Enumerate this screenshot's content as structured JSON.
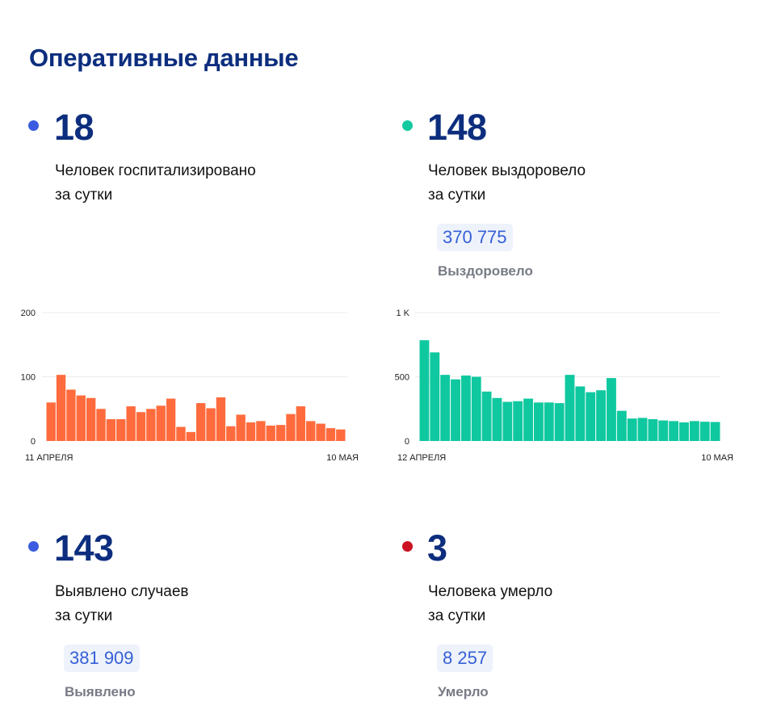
{
  "header": {
    "title": "Оперативные данные"
  },
  "colors": {
    "blue_dot": "#3a5be0",
    "teal_dot": "#12c9a0",
    "red_dot": "#cc1222",
    "hospital_bar": "#ff6b3d",
    "recovered_bar": "#0fc8a0"
  },
  "stats": {
    "hospitalized": {
      "value": "18",
      "line1": "Человек госпитализировано",
      "line2": "за сутки"
    },
    "recovered": {
      "value": "148",
      "line1": "Человек выздоровело",
      "line2": "за сутки",
      "total": "370 775",
      "total_label": "Выздоровело"
    },
    "cases": {
      "value": "143",
      "line1": "Выявлено случаев",
      "line2": "за сутки",
      "total": "381 909",
      "total_label": "Выявлено"
    },
    "deaths": {
      "value": "3",
      "line1": "Человека умерло",
      "line2": "за сутки",
      "total": "8 257",
      "total_label": "Умерло"
    }
  },
  "chart_data": [
    {
      "type": "bar",
      "ylim": [
        0,
        200
      ],
      "yticks": [
        "0",
        "100",
        "200"
      ],
      "ytick_values": [
        0,
        100,
        200
      ],
      "x_start_label": "11 АПРЕЛЯ",
      "x_end_label": "10 МАЯ",
      "values": [
        60,
        103,
        80,
        71,
        67,
        50,
        34,
        34,
        54,
        45,
        50,
        55,
        66,
        22,
        14,
        59,
        51,
        68,
        23,
        41,
        29,
        31,
        24,
        25,
        42,
        54,
        31,
        27,
        20,
        18
      ]
    },
    {
      "type": "bar",
      "ylim": [
        0,
        1000
      ],
      "yticks": [
        "0",
        "500",
        "1 K"
      ],
      "ytick_values": [
        0,
        500,
        1000
      ],
      "x_start_label": "12 АПРЕЛЯ",
      "x_end_label": "10 МАЯ",
      "values": [
        785,
        690,
        515,
        480,
        510,
        500,
        385,
        335,
        305,
        310,
        330,
        300,
        300,
        295,
        515,
        425,
        380,
        395,
        490,
        235,
        175,
        180,
        170,
        160,
        155,
        145,
        155,
        150,
        148
      ]
    }
  ]
}
